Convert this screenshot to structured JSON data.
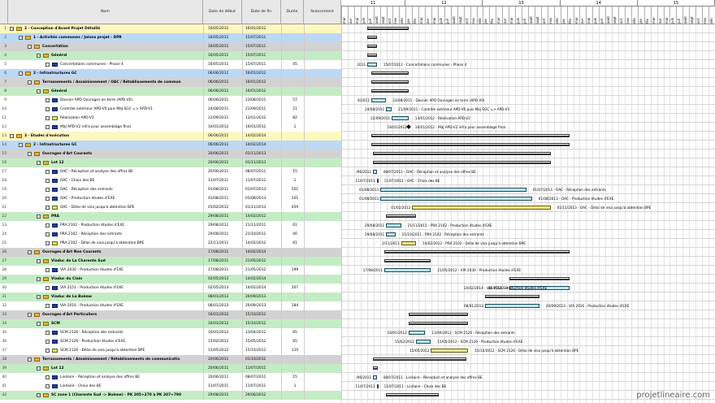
{
  "headers": {
    "num": "",
    "name": "Nom",
    "start": "Date de début",
    "end": "Date de fin",
    "duration": "Durée",
    "progress": "Avancement"
  },
  "timeline": {
    "years": [
      "11",
      "12",
      "13",
      "14",
      "15"
    ],
    "months": [
      "mar",
      "avr",
      "mai",
      "juin",
      "juil",
      "août",
      "sept",
      "oct",
      "nov",
      "déc",
      "jan",
      "fév",
      "mar",
      "avr",
      "mai",
      "juin",
      "juil",
      "août",
      "sept",
      "oct",
      "nov",
      "déc",
      "jan",
      "fév",
      "mar",
      "avr",
      "mai",
      "juin",
      "juil",
      "août",
      "sept",
      "oct",
      "nov",
      "déc",
      "jan",
      "fév",
      "mar",
      "avr",
      "mai",
      "juin",
      "juil",
      "août",
      "sept",
      "oct",
      "nov",
      "déc",
      "jan",
      "fév",
      "mar",
      "avr",
      "mai",
      "juin",
      "juil",
      "août",
      "sept",
      "oct",
      "nov",
      "déc"
    ]
  },
  "rows": [
    {
      "n": "1",
      "level": 0,
      "type": "folder",
      "bg": "#fff7c0",
      "name": "2 - Conception d'Avant Projet Détaillé",
      "start": "16/05/2011",
      "end": "16/01/2012",
      "dur": "",
      "av": "",
      "bold": true,
      "bar": {
        "kind": "sum",
        "from": 0.07,
        "to": 0.18
      }
    },
    {
      "n": "2",
      "level": 1,
      "type": "folder",
      "bg": "#bcd8f5",
      "name": "1 - Activités communes / Jalons projet - DPR",
      "start": "16/05/2011",
      "end": "15/07/2011",
      "dur": "",
      "av": "",
      "bold": true,
      "bar": {
        "kind": "sum",
        "from": 0.07,
        "to": 0.095
      }
    },
    {
      "n": "3",
      "level": 2,
      "type": "folder",
      "bg": "#d2d2d2",
      "name": "Concertation",
      "start": "16/05/2011",
      "end": "15/07/2011",
      "dur": "",
      "av": "",
      "bold": true,
      "bar": {
        "kind": "sum",
        "from": 0.07,
        "to": 0.095
      }
    },
    {
      "n": "4",
      "level": 3,
      "type": "folder",
      "bg": "#c4ecc4",
      "name": "Général",
      "start": "16/05/2011",
      "end": "15/07/2011",
      "dur": "",
      "av": "",
      "bold": true,
      "bar": {
        "kind": "sum",
        "from": 0.07,
        "to": 0.095
      }
    },
    {
      "n": "5",
      "level": 4,
      "type": "task",
      "bg": "#fff",
      "name": "Concertations communes - Phase 4",
      "start": "16/05/2011",
      "end": "15/07/2011",
      "dur": "45",
      "av": "",
      "bold": false,
      "lt": "2011",
      "bar": {
        "kind": "task",
        "from": 0.07,
        "to": 0.095
      },
      "rt": "15/07/2011 - Concertations communes - Phase 4"
    },
    {
      "n": "6",
      "level": 1,
      "type": "folder",
      "bg": "#bcd8f5",
      "name": "2 - Infrastructures GC",
      "start": "06/06/2011",
      "end": "16/01/2012",
      "dur": "",
      "av": "",
      "bold": true,
      "bar": {
        "kind": "sum",
        "from": 0.08,
        "to": 0.18
      }
    },
    {
      "n": "7",
      "level": 2,
      "type": "folder",
      "bg": "#d2d2d2",
      "name": "Terrassements / Assainissement / OAC / Rétablissements de commun",
      "start": "06/06/2011",
      "end": "16/01/2012",
      "dur": "",
      "av": "",
      "bold": true,
      "bar": {
        "kind": "sum",
        "from": 0.08,
        "to": 0.18
      }
    },
    {
      "n": "8",
      "level": 3,
      "type": "folder",
      "bg": "#c4ecc4",
      "name": "Général",
      "start": "06/06/2011",
      "end": "16/01/2012",
      "dur": "",
      "av": "",
      "bold": true,
      "bar": {
        "kind": "sum",
        "from": 0.08,
        "to": 0.18
      }
    },
    {
      "n": "9",
      "level": 4,
      "type": "task",
      "bg": "#fff",
      "name": "Dossier APD Ouvrages en terre (APD V0)",
      "start": "06/06/2011",
      "end": "23/08/2011",
      "dur": "57",
      "av": "",
      "bold": false,
      "lt": "6/2011",
      "bar": {
        "kind": "task",
        "from": 0.08,
        "to": 0.12
      },
      "rt": "23/08/2011 - Dossier APD Ouvrages en terre (APD V0)"
    },
    {
      "n": "10",
      "level": 4,
      "type": "task",
      "bg": "#fff",
      "name": "Contrôle extérieur APD-V0 puis MàJ SGC => APD-V1",
      "start": "24/08/2011",
      "end": "21/09/2011",
      "dur": "21",
      "av": "",
      "bold": false,
      "lt": "24/08/2011",
      "bar": {
        "kind": "task",
        "from": 0.12,
        "to": 0.135
      },
      "rt": "21/09/2011 - Contrôle extérieur APD-V0 puis MàJ SGC => APD-V1"
    },
    {
      "n": "11",
      "level": 4,
      "type": "task-y",
      "bg": "#fff",
      "name": "Réalisation APD-V2",
      "start": "22/09/2011",
      "end": "13/01/2012",
      "dur": "82",
      "av": "",
      "bold": false,
      "lt": "22/09/2011",
      "bar": {
        "kind": "task",
        "from": 0.135,
        "to": 0.18
      },
      "rt": "13/01/2012 - Réalisation APD-V2"
    },
    {
      "n": "12",
      "level": 4,
      "type": "task",
      "bg": "#fff",
      "name": "MàJ APD-V2 infra pour assemblage final",
      "start": "16/01/2012",
      "end": "16/01/2012",
      "dur": "1",
      "av": "",
      "bold": false,
      "lt": "16/01/2012",
      "bar": {
        "kind": "ms",
        "from": 0.18,
        "to": 0.18
      },
      "rt": "16/01/2012 - MàJ APD-V2 infra pour assemblage final"
    },
    {
      "n": "13",
      "level": 0,
      "type": "folder",
      "bg": "#fff7c0",
      "name": "3 - Etudes d'exécution",
      "start": "06/06/2011",
      "end": "14/02/2014",
      "dur": "",
      "av": "",
      "bold": true,
      "bar": {
        "kind": "sum",
        "from": 0.08,
        "to": 0.61
      }
    },
    {
      "n": "14",
      "level": 1,
      "type": "folder",
      "bg": "#bcd8f5",
      "name": "2 - Infrastructures GC",
      "start": "06/06/2011",
      "end": "14/02/2014",
      "dur": "",
      "av": "",
      "bold": true,
      "bar": {
        "kind": "sum",
        "from": 0.08,
        "to": 0.61
      }
    },
    {
      "n": "15",
      "level": 2,
      "type": "folder",
      "bg": "#d2d2d2",
      "name": "Ouvrages d'Art Courants",
      "start": "20/06/2011",
      "end": "01/11/2013",
      "dur": "",
      "av": "",
      "bold": true,
      "bar": {
        "kind": "sum",
        "from": 0.085,
        "to": 0.56
      }
    },
    {
      "n": "16",
      "level": 3,
      "type": "folder",
      "bg": "#c4ecc4",
      "name": "Lot 12",
      "start": "20/06/2011",
      "end": "01/11/2013",
      "dur": "",
      "av": "",
      "bold": true,
      "bar": {
        "kind": "sum",
        "from": 0.085,
        "to": 0.56
      }
    },
    {
      "n": "17",
      "level": 4,
      "type": "task",
      "bg": "#fff",
      "name": "OAC - Réception et analyse des offres BE",
      "start": "20/06/2011",
      "end": "08/07/2011",
      "dur": "15",
      "av": "",
      "bold": false,
      "lt": "/06/2011",
      "bar": {
        "kind": "task",
        "from": 0.085,
        "to": 0.095
      },
      "rt": "08/07/2011 - OAC - Réception et analyse des offres BE"
    },
    {
      "n": "18",
      "level": 4,
      "type": "task",
      "bg": "#fff",
      "name": "OAC - Choix des BE",
      "start": "11/07/2011",
      "end": "11/07/2011",
      "dur": "1",
      "av": "",
      "bold": false,
      "lt": "11/07/2011",
      "bar": {
        "kind": "task",
        "from": 0.095,
        "to": 0.097
      },
      "rt": "11/07/2011 - OAC - Choix des BE"
    },
    {
      "n": "19",
      "level": 4,
      "type": "task",
      "bg": "#fff",
      "name": "OAC - Réception des entrants",
      "start": "01/08/2011",
      "end": "01/07/2013",
      "dur": "501",
      "av": "",
      "bold": false,
      "lt": "01/08/2011",
      "bar": {
        "kind": "task",
        "from": 0.105,
        "to": 0.495
      },
      "rt": "01/07/2013 - OAC - Réception des entrants"
    },
    {
      "n": "20",
      "level": 4,
      "type": "task",
      "bg": "#fff",
      "name": "OAC - Production études d'EXE",
      "start": "01/08/2011",
      "end": "01/08/2013",
      "dur": "501",
      "av": "",
      "bold": false,
      "lt": "01/08/2011",
      "bar": {
        "kind": "task",
        "from": 0.105,
        "to": 0.51
      },
      "rt": "01/08/2013 - OAC - Production études d'EXE"
    },
    {
      "n": "21",
      "level": 4,
      "type": "task-y",
      "bg": "#fff",
      "name": "OAC - Délai de visa jusqu'à obtention BPE",
      "start": "01/02/2012",
      "end": "01/11/2013",
      "dur": "459",
      "av": "",
      "bold": false,
      "lt": "01/02/2012",
      "bar": {
        "kind": "yel",
        "from": 0.19,
        "to": 0.56
      },
      "rt": "01/11/2013 - OAC - Délai de visa jusqu'à obtention BPE"
    },
    {
      "n": "22",
      "level": 3,
      "type": "folder",
      "bg": "#c4ecc4",
      "name": "PRA",
      "start": "29/08/2011",
      "end": "14/02/2012",
      "dur": "",
      "av": "",
      "bold": true,
      "bar": {
        "kind": "sum",
        "from": 0.12,
        "to": 0.2
      }
    },
    {
      "n": "23",
      "level": 4,
      "type": "task",
      "bg": "#fff",
      "name": "PRA 2102 - Production études d'EXE",
      "start": "29/08/2011",
      "end": "21/11/2011",
      "dur": "61",
      "av": "",
      "bold": false,
      "lt": "29/08/2011",
      "bar": {
        "kind": "task",
        "from": 0.12,
        "to": 0.16
      },
      "rt": "21/11/2011 - PRA 2102 - Production études d'EXE"
    },
    {
      "n": "24",
      "level": 4,
      "type": "task",
      "bg": "#fff",
      "name": "PRA 2102 - Réception des entrants",
      "start": "29/08/2011",
      "end": "21/10/2011",
      "dur": "40",
      "av": "",
      "bold": false,
      "lt": "29/08/2011",
      "bar": {
        "kind": "task",
        "from": 0.12,
        "to": 0.145
      },
      "rt": "21/10/2011 - PRA 2102 - Réception des entrants"
    },
    {
      "n": "25",
      "level": 4,
      "type": "task-y",
      "bg": "#fff",
      "name": "PRA 2102 - Délai de visa jusqu'à obtention BPE",
      "start": "22/11/2011",
      "end": "14/02/2012",
      "dur": "61",
      "av": "",
      "bold": false,
      "lt": "2/11/2011",
      "bar": {
        "kind": "yel",
        "from": 0.16,
        "to": 0.2
      },
      "rt": "14/02/2012 - PRA 2102 - Délai de visa jusqu'à obtention BPE"
    },
    {
      "n": "26",
      "level": 2,
      "type": "folder",
      "bg": "#d2d2d2",
      "name": "Ouvrages d'Art Non Courants",
      "start": "17/08/2011",
      "end": "14/02/2014",
      "dur": "",
      "av": "",
      "bold": true,
      "bar": {
        "kind": "sum",
        "from": 0.115,
        "to": 0.61
      }
    },
    {
      "n": "27",
      "level": 3,
      "type": "folder",
      "bg": "#c4ecc4",
      "name": "Viaduc de La Charente Sud",
      "start": "17/08/2011",
      "end": "21/05/2012",
      "dur": "",
      "av": "",
      "bold": true,
      "bar": {
        "kind": "sum",
        "from": 0.115,
        "to": 0.24
      }
    },
    {
      "n": "28",
      "level": 4,
      "type": "task",
      "bg": "#fff",
      "name": "VIA 2030 - Production études d'EXE",
      "start": "17/08/2011",
      "end": "21/05/2012",
      "dur": "199",
      "av": "",
      "bold": false,
      "lt": "17/08/2011",
      "bar": {
        "kind": "task",
        "from": 0.115,
        "to": 0.24
      },
      "rt": "21/05/2012 - VIA 2030 - Production études d'EXE"
    },
    {
      "n": "29",
      "level": 3,
      "type": "folder",
      "bg": "#c4ecc4",
      "name": "Viaduc du Clain",
      "start": "02/05/2013",
      "end": "14/02/2014",
      "dur": "",
      "av": "",
      "bold": true,
      "bar": {
        "kind": "sum",
        "from": 0.45,
        "to": 0.61
      }
    },
    {
      "n": "30",
      "level": 4,
      "type": "task",
      "bg": "#fff",
      "name": "VIA 2151 - Production études d'EXE",
      "start": "02/05/2013",
      "end": "14/02/2014",
      "dur": "207",
      "av": "",
      "bold": false,
      "lt": "02/05/2013",
      "bar": {
        "kind": "task",
        "from": 0.45,
        "to": 0.61
      },
      "rt": "14/02/2014 - VIA 2151 - Production études d'EXE"
    },
    {
      "n": "31",
      "level": 3,
      "type": "folder",
      "bg": "#c4ecc4",
      "name": "Viaduc de La Boème",
      "start": "08/01/2013",
      "end": "20/09/2013",
      "dur": "",
      "av": "",
      "bold": true,
      "bar": {
        "kind": "sum",
        "from": 0.385,
        "to": 0.53
      }
    },
    {
      "n": "32",
      "level": 4,
      "type": "task",
      "bg": "#fff",
      "name": "VIA 2016 - Production études d'EXE",
      "start": "08/01/2013",
      "end": "20/09/2013",
      "dur": "184",
      "av": "",
      "bold": false,
      "lt": "08/01/2013",
      "bar": {
        "kind": "task",
        "from": 0.385,
        "to": 0.53
      },
      "rt": "20/09/2013 - VIA 2016 - Production études d'EXE"
    },
    {
      "n": "33",
      "level": 2,
      "type": "folder",
      "bg": "#d2d2d2",
      "name": "Ouvrages d'Art Particuliers",
      "start": "16/01/2012",
      "end": "15/10/2012",
      "dur": "",
      "av": "",
      "bold": true,
      "bar": {
        "kind": "sum",
        "from": 0.18,
        "to": 0.34
      }
    },
    {
      "n": "34",
      "level": 3,
      "type": "folder",
      "bg": "#c4ecc4",
      "name": "SCM",
      "start": "16/01/2012",
      "end": "15/10/2012",
      "dur": "",
      "av": "",
      "bold": true,
      "bar": {
        "kind": "sum",
        "from": 0.18,
        "to": 0.34
      }
    },
    {
      "n": "35",
      "level": 4,
      "type": "task",
      "bg": "#fff",
      "name": "SCM 2126 - Réception des entrants",
      "start": "16/01/2012",
      "end": "13/04/2012",
      "dur": "65",
      "av": "",
      "bold": false,
      "lt": "16/01/2012",
      "bar": {
        "kind": "task",
        "from": 0.18,
        "to": 0.225
      },
      "rt": "13/04/2012 - SCM 2126 - Réception des entrants"
    },
    {
      "n": "36",
      "level": 4,
      "type": "task",
      "bg": "#fff",
      "name": "SCM 2126 - Production études d'EXE",
      "start": "15/02/2012",
      "end": "15/05/2012",
      "dur": "65",
      "av": "",
      "bold": false,
      "lt": "15/02/2012",
      "bar": {
        "kind": "task",
        "from": 0.2,
        "to": 0.24
      },
      "rt": "15/05/2012 - SCM 2126 - Production études d'EXE"
    },
    {
      "n": "37",
      "level": 4,
      "type": "task-y",
      "bg": "#fff",
      "name": "SCM 2126 - Délai de visa jusqu'à obtention BPE",
      "start": "15/05/2012",
      "end": "15/10/2012",
      "dur": "110",
      "av": "",
      "bold": false,
      "lt": "15/05/2012",
      "bar": {
        "kind": "yel",
        "from": 0.24,
        "to": 0.34
      },
      "rt": "15/10/2012 - SCM 2126 - Délai de visa jusqu'à obtention BPE"
    },
    {
      "n": "38",
      "level": 2,
      "type": "folder",
      "bg": "#d2d2d2",
      "name": "Terrassements / Assainissement / Rétablissements de communicatio",
      "start": "20/06/2011",
      "end": "01/10/2012",
      "dur": "",
      "av": "",
      "bold": true,
      "bar": {
        "kind": "sum",
        "from": 0.085,
        "to": 0.335
      }
    },
    {
      "n": "39",
      "level": 3,
      "type": "folder",
      "bg": "#c4ecc4",
      "name": "Lot 12",
      "start": "20/06/2011",
      "end": "11/07/2011",
      "dur": "",
      "av": "",
      "bold": true,
      "bar": {
        "kind": "sum",
        "from": 0.085,
        "to": 0.097
      }
    },
    {
      "n": "40",
      "level": 4,
      "type": "task",
      "bg": "#fff",
      "name": "Linéaire - Réception et analyse des offres BE",
      "start": "20/06/2011",
      "end": "08/07/2011",
      "dur": "15",
      "av": "",
      "bold": false,
      "lt": "/06/2011",
      "bar": {
        "kind": "task",
        "from": 0.085,
        "to": 0.095
      },
      "rt": "08/07/2011 - Linéaire - Réception et analyse des offres BE"
    },
    {
      "n": "41",
      "level": 4,
      "type": "task",
      "bg": "#fff",
      "name": "Linéaire - Choix des BE",
      "start": "11/07/2011",
      "end": "11/07/2011",
      "dur": "1",
      "av": "",
      "bold": false,
      "lt": "11/07/2011",
      "bar": {
        "kind": "task",
        "from": 0.095,
        "to": 0.097
      },
      "rt": "11/07/2011 - Linéaire - Choix des BE"
    },
    {
      "n": "42",
      "level": 3,
      "type": "folder",
      "bg": "#c4ecc4",
      "name": "SC zone 1 (Charente Sud -> Boème) - PK 205+270 à PK 207+790",
      "start": "29/08/2011",
      "end": "29/06/2012",
      "dur": "",
      "av": "",
      "bold": true,
      "bar": {
        "kind": "sum",
        "from": 0.12,
        "to": 0.26
      }
    }
  ],
  "watermark": "projetlineaire.com"
}
